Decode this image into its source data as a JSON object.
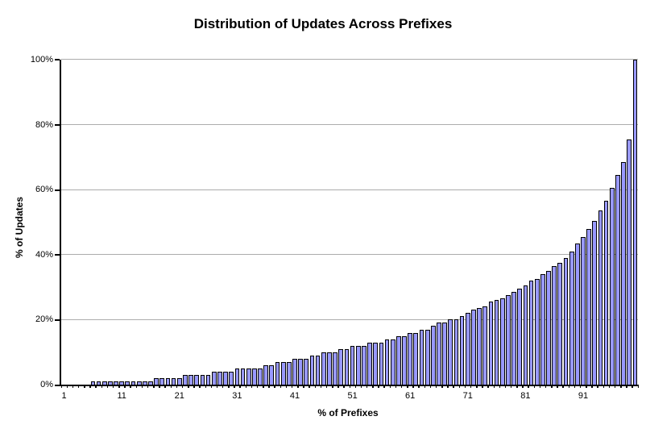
{
  "chart_data": {
    "type": "bar",
    "title": "Distribution of Updates Across Prefixes",
    "xlabel": "% of Prefixes",
    "ylabel": "% of Updates",
    "x_start": 1,
    "x_end": 100,
    "x_tick_labels": [
      "1",
      "11",
      "21",
      "31",
      "41",
      "51",
      "61",
      "71",
      "81",
      "91"
    ],
    "y_ticks": [
      0,
      20,
      40,
      60,
      80,
      100
    ],
    "y_tick_labels": [
      "0%",
      "20%",
      "40%",
      "60%",
      "80%",
      "100%"
    ],
    "ylim": [
      0,
      100
    ],
    "grid": true,
    "legend": "none",
    "values": [
      0,
      0,
      0,
      0,
      0,
      1,
      1,
      1,
      1,
      1,
      1,
      1,
      1,
      1,
      1,
      1,
      2,
      2,
      2,
      2,
      2,
      3,
      3,
      3,
      3,
      3,
      4,
      4,
      4,
      4,
      5,
      5,
      5,
      5,
      5,
      6,
      6,
      7,
      7,
      7,
      8,
      8,
      8,
      9,
      9,
      10,
      10,
      10,
      11,
      11,
      12,
      12,
      12,
      13,
      13,
      13,
      14,
      14,
      15,
      15,
      16,
      16,
      17,
      17,
      18,
      19,
      19,
      20,
      20,
      21,
      22,
      23,
      23.5,
      24,
      25.5,
      26,
      26.5,
      27.5,
      28.5,
      29.5,
      30.5,
      32,
      32.5,
      34,
      35,
      36.5,
      37.5,
      39,
      41,
      43.5,
      45.5,
      48,
      50.5,
      53.5,
      56.5,
      60.5,
      64.5,
      68.5,
      75.5,
      100
    ],
    "colors": {
      "bar_fill": "#9999FF",
      "bar_border": "#000000",
      "gridline": "#ACACAC",
      "axis": "#000000",
      "background": "#FFFFFF",
      "text": "#000000"
    }
  }
}
